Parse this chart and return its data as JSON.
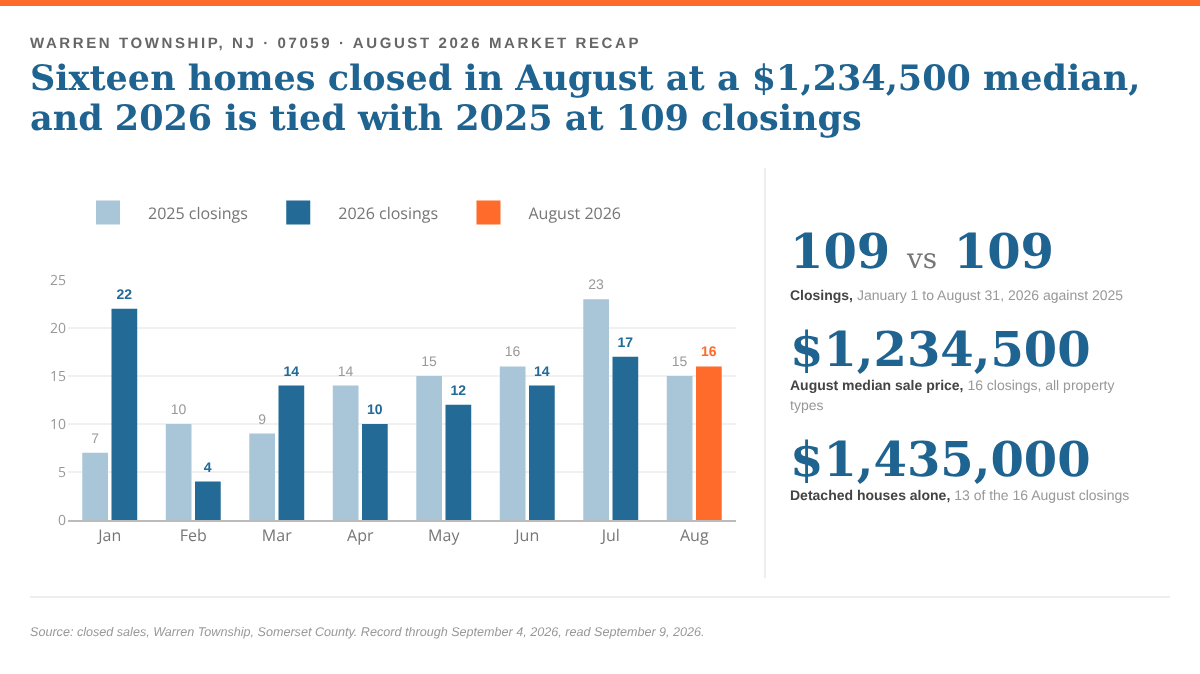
{
  "chart_data": [
    {
      "type": "bar",
      "subtitle": "WARREN TOWNSHIP, NJ · 07059 · AUGUST 2026 MARKET RECAP",
      "title": "Sixteen homes closed in August at a $1,234,500 median, and 2026 is tied with 2025 at 109 closings",
      "categories": [
        "Jan",
        "Feb",
        "Mar",
        "Apr",
        "May",
        "Jun",
        "Jul",
        "Aug"
      ],
      "series": [
        {
          "name": "2025 closings",
          "color": "#a9c6d8",
          "values": [
            7,
            10,
            9,
            14,
            15,
            16,
            23,
            15
          ]
        },
        {
          "name": "2026 closings",
          "color": "#236a96",
          "values": [
            22,
            4,
            14,
            10,
            12,
            14,
            17,
            null
          ]
        },
        {
          "name": "August 2026",
          "color": "#ff6b2b",
          "values": [
            null,
            null,
            null,
            null,
            null,
            null,
            null,
            16
          ]
        }
      ],
      "ylim": [
        0,
        25
      ],
      "yticks": [
        0,
        5,
        10,
        15,
        20,
        25
      ],
      "grid": "y",
      "legend": "top left",
      "data_labels": true,
      "annotations": [
        "Source: closed sales, Warren Township, Somerset County. Record through September 4, 2026, read September 9, 2026."
      ]
    },
    {
      "type": "other",
      "annotations": [
        "109 vs 109",
        "Closings, January 1 to August 31, 2026 against 2025",
        "$1,234,500",
        "August median sale price, 16 closings, all property types",
        "$1,435,000",
        "Detached houses alone, 13 of the 16 August closings"
      ]
    }
  ]
}
